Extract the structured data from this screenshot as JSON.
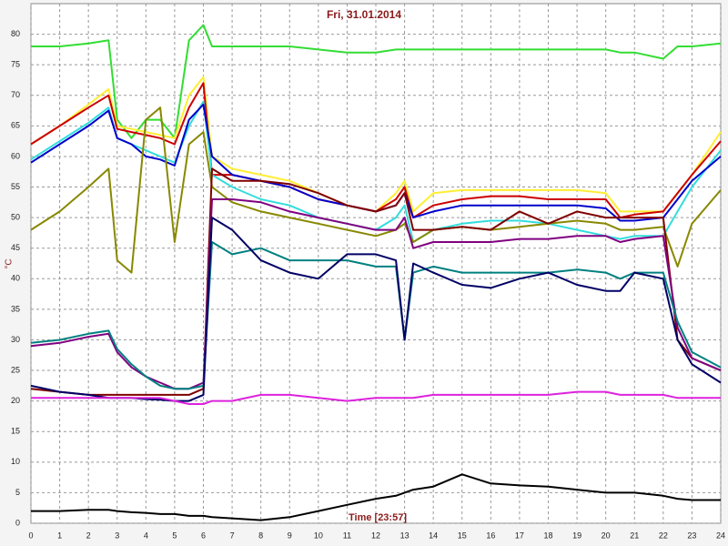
{
  "chart_data": {
    "type": "line",
    "title": "Fri, 31.01.2014",
    "x_label": "Time [23:57]",
    "y_label": "°C",
    "grid": true,
    "xlim": [
      0,
      24
    ],
    "ylim": [
      0,
      85
    ],
    "xticks": [
      0,
      1,
      2,
      3,
      4,
      5,
      6,
      7,
      8,
      9,
      10,
      11,
      12,
      13,
      14,
      15,
      16,
      17,
      18,
      19,
      20,
      21,
      22,
      23,
      24
    ],
    "yticks": [
      0,
      5,
      10,
      15,
      20,
      25,
      30,
      35,
      40,
      45,
      50,
      55,
      60,
      65,
      70,
      75,
      80
    ],
    "x": [
      0,
      1,
      2,
      2.7,
      3,
      3.5,
      4,
      4.5,
      5,
      5.5,
      6,
      6.3,
      7,
      8,
      9,
      10,
      11,
      12,
      12.7,
      13,
      13.3,
      14,
      15,
      16,
      17,
      18,
      19,
      20,
      20.5,
      21,
      22,
      22.5,
      23,
      24
    ],
    "series": [
      {
        "color": "#33dd33",
        "values": [
          78,
          78,
          78.5,
          79,
          66,
          63,
          66,
          66,
          63,
          79,
          81.5,
          78,
          78,
          78,
          78,
          77.5,
          77,
          77,
          77.5,
          77.5,
          77.5,
          77.5,
          77.5,
          77.5,
          77.5,
          77.5,
          77.5,
          77.5,
          77,
          77,
          76,
          78,
          78,
          78.5
        ]
      },
      {
        "color": "#ffee33",
        "values": [
          62,
          65,
          68.5,
          71,
          65,
          64.5,
          64,
          63.5,
          63,
          70,
          73,
          60,
          58,
          57,
          56,
          54,
          52,
          51,
          54,
          56,
          51,
          54,
          54.5,
          54.5,
          54.5,
          54.5,
          54.5,
          54,
          51,
          51,
          51,
          54,
          57,
          64
        ]
      },
      {
        "color": "#cc0000",
        "values": [
          62,
          65,
          68,
          70,
          64.5,
          64,
          63.5,
          63,
          62,
          68,
          72,
          57,
          57,
          56,
          55,
          53,
          52,
          51,
          53,
          55,
          50,
          52,
          53,
          53.5,
          53.5,
          53,
          53,
          53,
          50,
          50.5,
          51,
          54,
          57,
          62.5
        ]
      },
      {
        "color": "#33dddd",
        "values": [
          59.5,
          62.5,
          65.5,
          68,
          63,
          62,
          61,
          60,
          59,
          65,
          69,
          57,
          55,
          53,
          52,
          50,
          49,
          48,
          50,
          52,
          46,
          48,
          49,
          49.5,
          49.5,
          49,
          48,
          47,
          46.5,
          47,
          47,
          51,
          55,
          61
        ]
      },
      {
        "color": "#0000cc",
        "values": [
          59,
          62,
          65,
          67.5,
          63,
          62,
          60,
          59.5,
          58.5,
          66,
          68.5,
          60,
          57,
          56,
          55,
          53,
          52,
          51,
          52,
          54,
          50,
          51,
          52,
          52,
          52,
          52,
          52,
          51.5,
          49.5,
          49.5,
          50,
          53,
          56,
          60
        ]
      },
      {
        "color": "#888800",
        "values": [
          48,
          51,
          55,
          58,
          43,
          41,
          66,
          68,
          46,
          62,
          64,
          55,
          52.5,
          51,
          50,
          49,
          48,
          47,
          48,
          49,
          46,
          48,
          48.5,
          48,
          48.5,
          49,
          49.5,
          49,
          48,
          48,
          48.5,
          42,
          49,
          54.5
        ]
      },
      {
        "color": "#800000",
        "values": [
          22,
          21.5,
          21,
          21,
          21,
          21,
          21,
          21,
          21,
          21,
          22,
          58,
          56,
          56,
          55.5,
          54,
          52,
          51,
          52,
          54,
          48,
          48,
          48.5,
          48,
          51,
          49,
          51,
          50,
          50,
          50,
          50,
          30,
          27,
          25
        ]
      },
      {
        "color": "#800080",
        "values": [
          29,
          29.5,
          30.5,
          31,
          28,
          25.5,
          24,
          23,
          22,
          22,
          23,
          53,
          53,
          52.5,
          51,
          50,
          49,
          48,
          48,
          50,
          45,
          46,
          46,
          46,
          46.5,
          46.5,
          47,
          47,
          46,
          46.5,
          47,
          32,
          27,
          25
        ]
      },
      {
        "color": "#008080",
        "values": [
          29.5,
          30,
          31,
          31.5,
          28.5,
          26,
          24,
          22.5,
          22,
          22,
          22.5,
          46,
          44,
          45,
          43,
          43,
          43,
          42,
          42,
          30,
          41,
          42,
          41,
          41,
          41,
          41,
          41.5,
          41,
          40,
          41,
          41,
          33,
          28,
          25.5
        ]
      },
      {
        "color": "#000066",
        "values": [
          22.5,
          21.5,
          21,
          20.5,
          20.5,
          20.5,
          20.3,
          20.2,
          20,
          20,
          21,
          50,
          48,
          43,
          41,
          40,
          44,
          44,
          43,
          30,
          42.5,
          41,
          39,
          38.5,
          40,
          41,
          39,
          38,
          38,
          41,
          40,
          30,
          26,
          23
        ]
      },
      {
        "color": "#dd22dd",
        "values": [
          20.5,
          20.5,
          20.5,
          20.5,
          20.5,
          20.5,
          20.5,
          20.5,
          20,
          19.5,
          19.5,
          20,
          20,
          21,
          21,
          20.5,
          20,
          20.5,
          20.5,
          20.5,
          20.5,
          21,
          21,
          21,
          21,
          21,
          21.5,
          21.5,
          21,
          21,
          21,
          20.5,
          20.5,
          20.5
        ]
      },
      {
        "color": "#000000",
        "values": [
          2,
          2,
          2.2,
          2.2,
          2,
          1.8,
          1.7,
          1.5,
          1.5,
          1.2,
          1.2,
          1,
          0.8,
          0.5,
          1,
          2,
          3,
          4,
          4.5,
          5,
          5.5,
          6,
          8,
          6.5,
          6.2,
          6,
          5.5,
          5,
          5,
          5,
          4.5,
          4,
          3.8,
          3.8
        ]
      }
    ]
  }
}
